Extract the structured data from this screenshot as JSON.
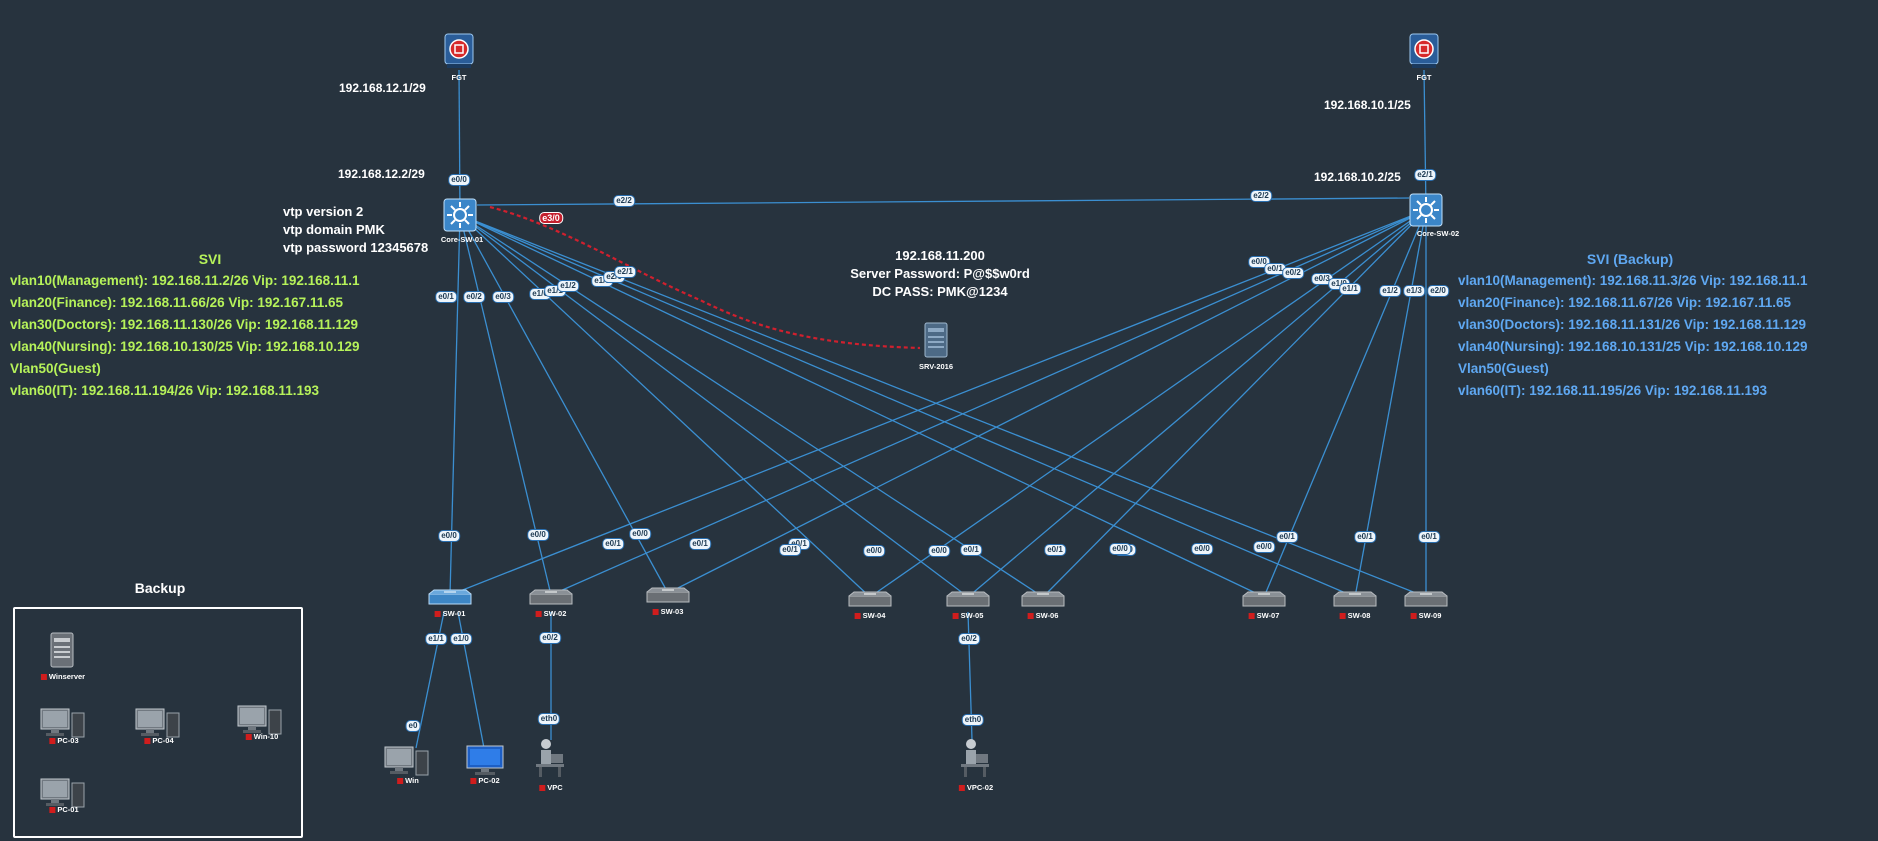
{
  "devices": {
    "fgt_left": "FGT",
    "fgt_right": "FGT",
    "core1": "Core-SW-01",
    "core2": "Core-SW-02",
    "srv": "SRV-2016",
    "sw01": "SW-01",
    "sw02": "SW-02",
    "sw03": "SW-03",
    "sw04": "SW-04",
    "sw05": "SW-05",
    "sw06": "SW-06",
    "sw07": "SW-07",
    "sw08": "SW-08",
    "sw09": "SW-09",
    "win": "Win",
    "pc02": "PC-02",
    "vpc": "VPC",
    "vpc02": "VPC-02"
  },
  "ips": {
    "fgt_left": "192.168.12.1/29",
    "core1": "192.168.12.2/29",
    "fgt_right": "192.168.10.1/25",
    "core2": "192.168.10.2/25"
  },
  "vtp": [
    "vtp version 2",
    "vtp domain PMK",
    "vtp password 12345678"
  ],
  "server_info": [
    "192.168.11.200",
    "Server Password: P@$$w0rd",
    "DC PASS: PMK@1234"
  ],
  "svi": {
    "title": "SVI",
    "lines": [
      "vlan10(Management): 192.168.11.2/26 Vip: 192.168.11.1",
      "vlan20(Finance): 192.168.11.66/26 Vip: 192.167.11.65",
      "vlan30(Doctors): 192.168.11.130/26 Vip: 192.168.11.129",
      "vlan40(Nursing): 192.168.10.130/25 Vip: 192.168.10.129",
      "Vlan50(Guest)",
      "vlan60(IT): 192.168.11.194/26 Vip: 192.168.11.193"
    ]
  },
  "svi_backup": {
    "title": "SVI (Backup)",
    "lines": [
      "vlan10(Management): 192.168.11.3/26 Vip: 192.168.11.1",
      "vlan20(Finance): 192.168.11.67/26 Vip: 192.167.11.65",
      "vlan30(Doctors): 192.168.11.131/26 Vip: 192.168.11.129",
      "vlan40(Nursing): 192.168.10.131/25 Vip: 192.168.10.129",
      "Vlan50(Guest)",
      "vlan60(IT): 192.168.11.195/26 Vip: 192.168.11.193"
    ]
  },
  "backup": {
    "title": "Backup",
    "items": [
      "Winserver",
      "PC-03",
      "PC-04",
      "Win-10",
      "PC-01"
    ]
  },
  "ports": {
    "c1_up": "e0/0",
    "c1_e22": "e2/2",
    "c2_e22": "e2/2",
    "c2_up": "e2/1",
    "c1_e30": "e3/0",
    "c1_01": "e0/1",
    "c1_02": "e0/2",
    "c1_03": "e0/3",
    "c1_10": "e1/0",
    "c1_11": "e1/1",
    "c1_12": "e1/2",
    "c1_13": "e1/3",
    "c1_20": "e2/0",
    "c1_21": "e2/1",
    "c2_00": "e0/0",
    "c2_01": "e0/1",
    "c2_02": "e0/2",
    "c2_03": "e0/3",
    "c2_10": "e1/0",
    "c2_11": "e1/1",
    "c2_12": "e1/2",
    "c2_13": "e1/3",
    "c2_20": "e2/0",
    "sw01_a": "e0/0",
    "sw01_b": "e0/1",
    "sw02_a": "e0/0",
    "sw02_b": "e0/1",
    "sw03_a": "e0/0",
    "sw03_b": "e0/1",
    "sw04_a": "e0/1",
    "sw04_b": "e0/0",
    "sw05_a": "e0/0",
    "sw05_b": "e0/1",
    "sw06_a": "e0/1",
    "sw06_b": "e0/0",
    "sw07_a": "e0/0",
    "sw07_b": "e0/1",
    "sw08_a": "e0/0",
    "sw08_b": "e0/1",
    "sw09_a": "e0/0",
    "sw09_b": "e0/1",
    "sw01_d1": "e1/1",
    "sw01_d2": "e1/0",
    "sw02_d": "e0/2",
    "sw05_d": "e0/2",
    "win_e": "e0",
    "vpc_e": "eth0",
    "vpc02_e": "eth0"
  },
  "colors": {
    "background": "#27333e",
    "link": "#3b8fd1",
    "svi": "#b6f25a",
    "svi_backup": "#5fa8f2",
    "dashed": "#d0202e"
  }
}
